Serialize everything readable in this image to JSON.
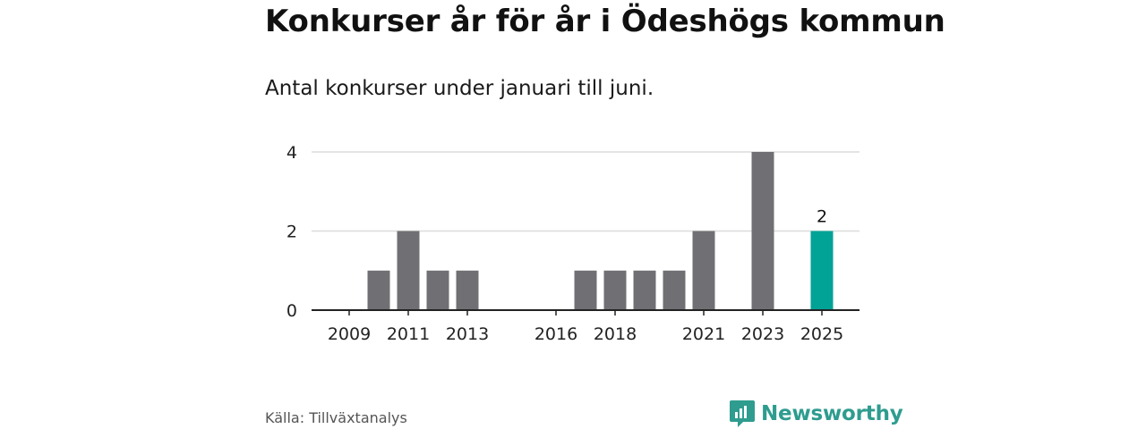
{
  "title": "Konkurser år för år i Ödeshögs kommun",
  "subtitle": "Antal konkurser under januari till juni.",
  "source": "Källa: Tillväxtanalys",
  "brand": {
    "name": "Newsworthy",
    "icon": "newsworthy-logo-icon"
  },
  "colors": {
    "bar": "#707074",
    "highlight": "#00a396",
    "grid": "#dcdcdc",
    "axis": "#222222"
  },
  "chart_data": {
    "type": "bar",
    "categories": [
      "2009",
      "2010",
      "2011",
      "2012",
      "2013",
      "2014",
      "2015",
      "2016",
      "2017",
      "2018",
      "2019",
      "2020",
      "2021",
      "2022",
      "2023",
      "2024",
      "2025"
    ],
    "values": [
      0,
      1,
      2,
      1,
      1,
      0,
      0,
      0,
      1,
      1,
      1,
      1,
      2,
      0,
      4,
      0,
      2
    ],
    "x_tick_labels": [
      "2009",
      "2011",
      "2013",
      "2016",
      "2018",
      "2021",
      "2023",
      "2025"
    ],
    "y_ticks": [
      0,
      2,
      4
    ],
    "ylim": [
      0,
      4
    ],
    "highlight_category": "2025",
    "data_labels": [
      {
        "category": "2025",
        "text": "2"
      }
    ],
    "grid": true,
    "legend": "none"
  }
}
